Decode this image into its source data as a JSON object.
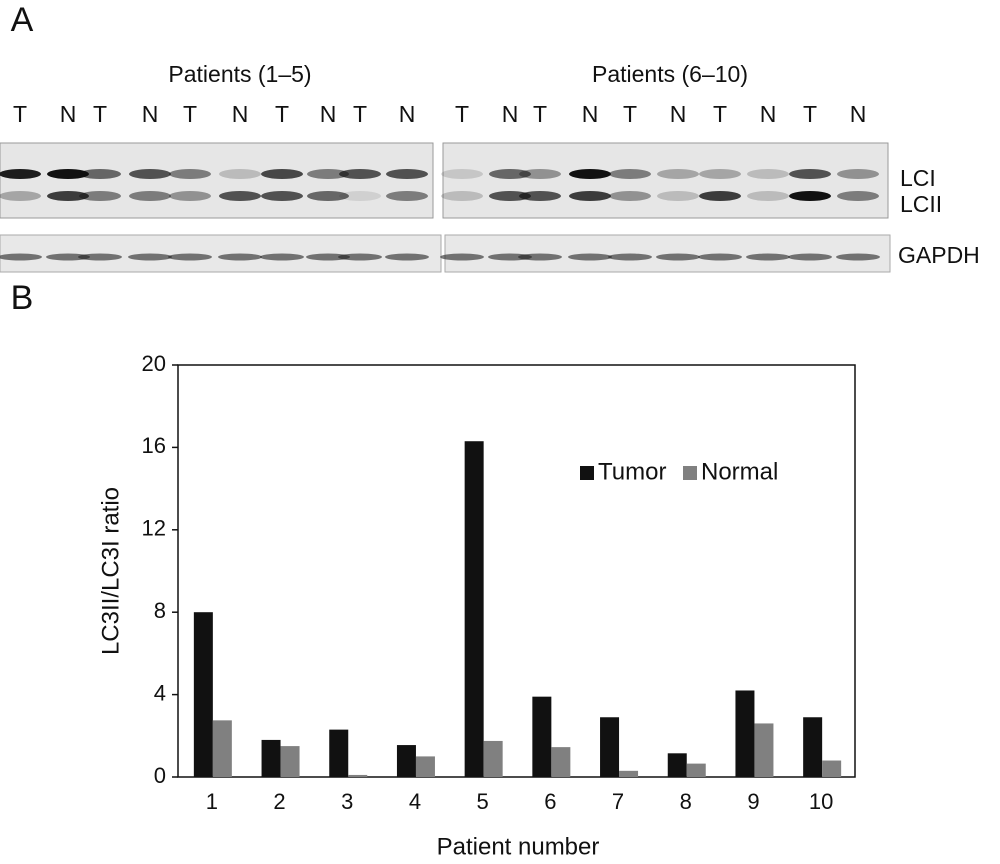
{
  "panel_a": {
    "label": "A",
    "group_titles": [
      "Patients (1–5)",
      "Patients (6–10)"
    ],
    "lanes": [
      [
        "T",
        "N",
        "T",
        "N",
        "T",
        "N",
        "T",
        "N",
        "T",
        "N"
      ],
      [
        "T",
        "N",
        "T",
        "N",
        "T",
        "N",
        "T",
        "N",
        "T",
        "N"
      ]
    ],
    "band_labels": [
      "LCI",
      "LCII",
      "GAPDH"
    ]
  },
  "chart_data": {
    "type": "bar",
    "panel_label": "B",
    "x_label": "Patient number",
    "y_label": "LC3II/LC3I ratio",
    "categories": [
      "1",
      "2",
      "3",
      "4",
      "5",
      "6",
      "7",
      "8",
      "9",
      "10"
    ],
    "series": [
      {
        "name": "Tumor",
        "color": "#111111",
        "values": [
          8.0,
          1.8,
          2.3,
          1.55,
          16.3,
          3.9,
          2.9,
          1.15,
          4.2,
          2.9
        ]
      },
      {
        "name": "Normal",
        "color": "#808080",
        "values": [
          2.75,
          1.5,
          0.1,
          1.0,
          1.75,
          1.45,
          0.3,
          0.65,
          2.6,
          0.8
        ]
      }
    ],
    "ylim": [
      0,
      20
    ],
    "yticks": [
      0,
      4,
      8,
      12,
      16,
      20
    ],
    "grid": false,
    "legend": "right"
  }
}
